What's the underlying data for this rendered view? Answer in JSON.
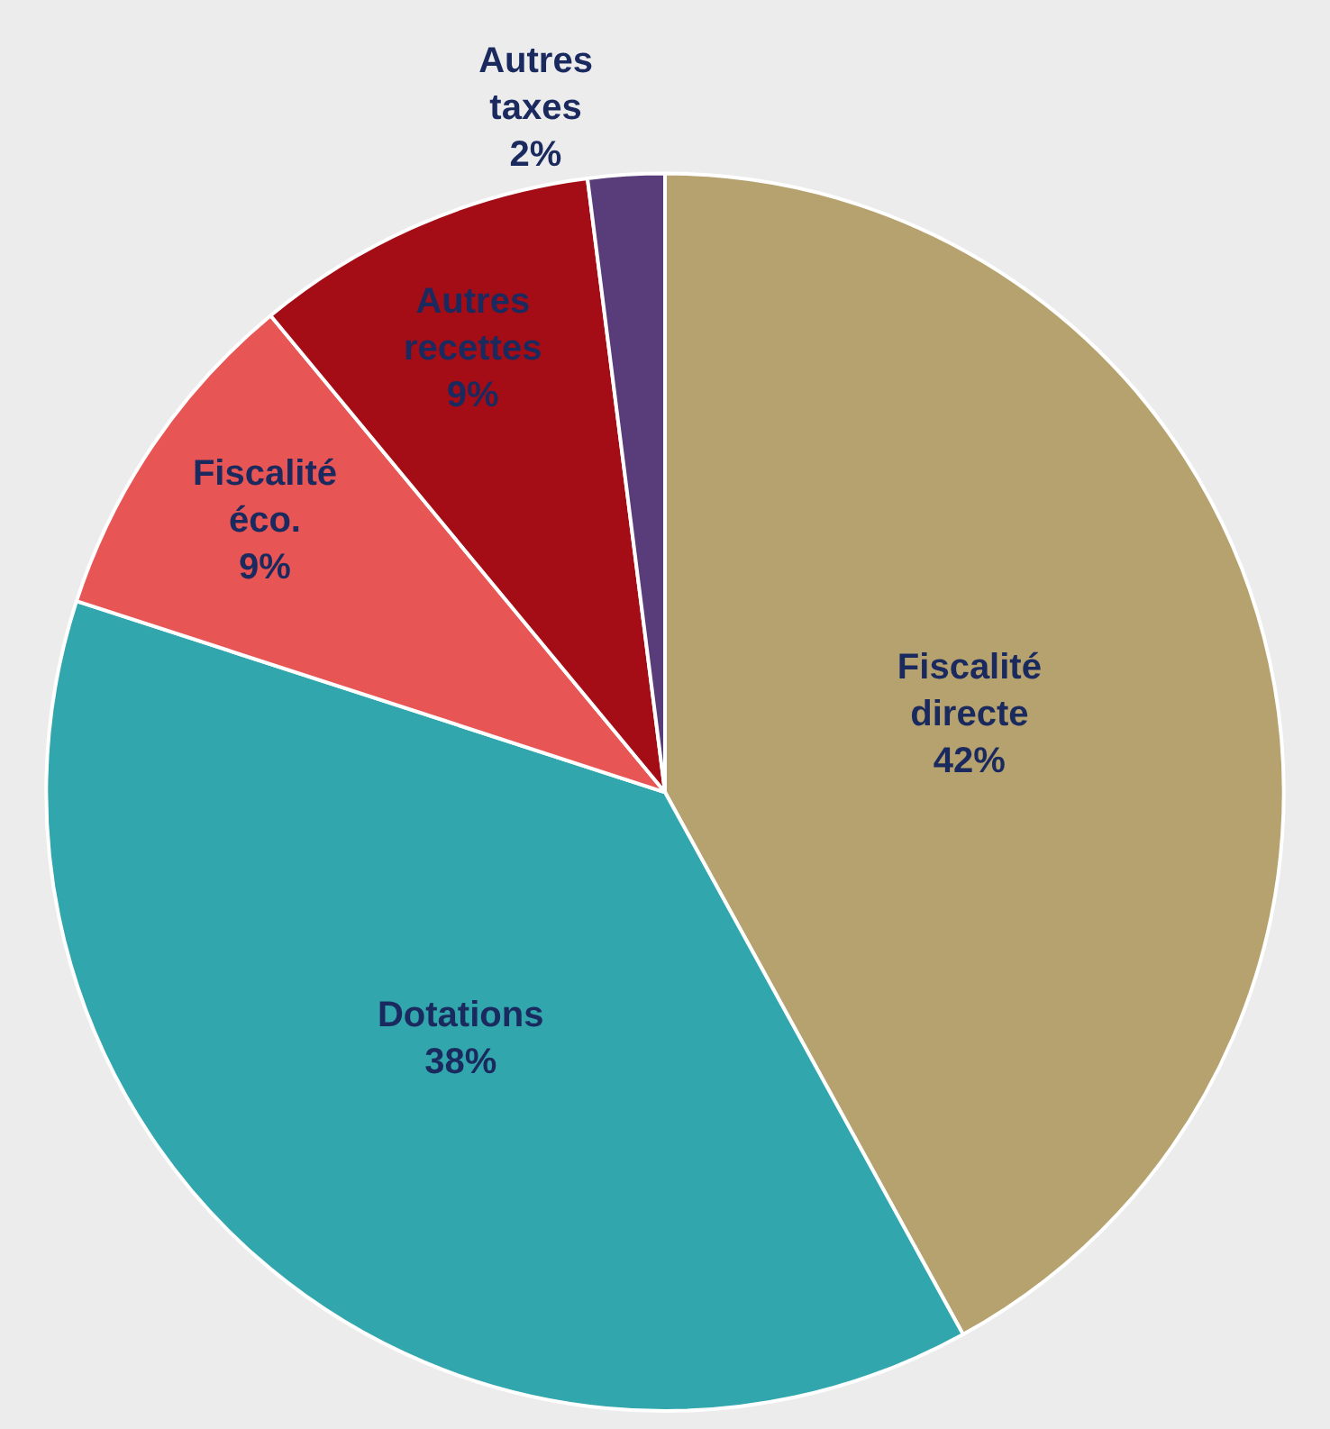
{
  "chart_data": {
    "type": "pie",
    "categories": [
      "Fiscalité directe",
      "Dotations",
      "Fiscalité éco.",
      "Autres recettes",
      "Autres taxes"
    ],
    "values": [
      42,
      38,
      9,
      9,
      2
    ],
    "value_labels": [
      "42%",
      "38%",
      "9%",
      "9%",
      "2%"
    ],
    "colors": [
      "#b5a26e",
      "#31a6ad",
      "#e85555",
      "#a50d16",
      "#583d7a"
    ],
    "legend": false
  }
}
